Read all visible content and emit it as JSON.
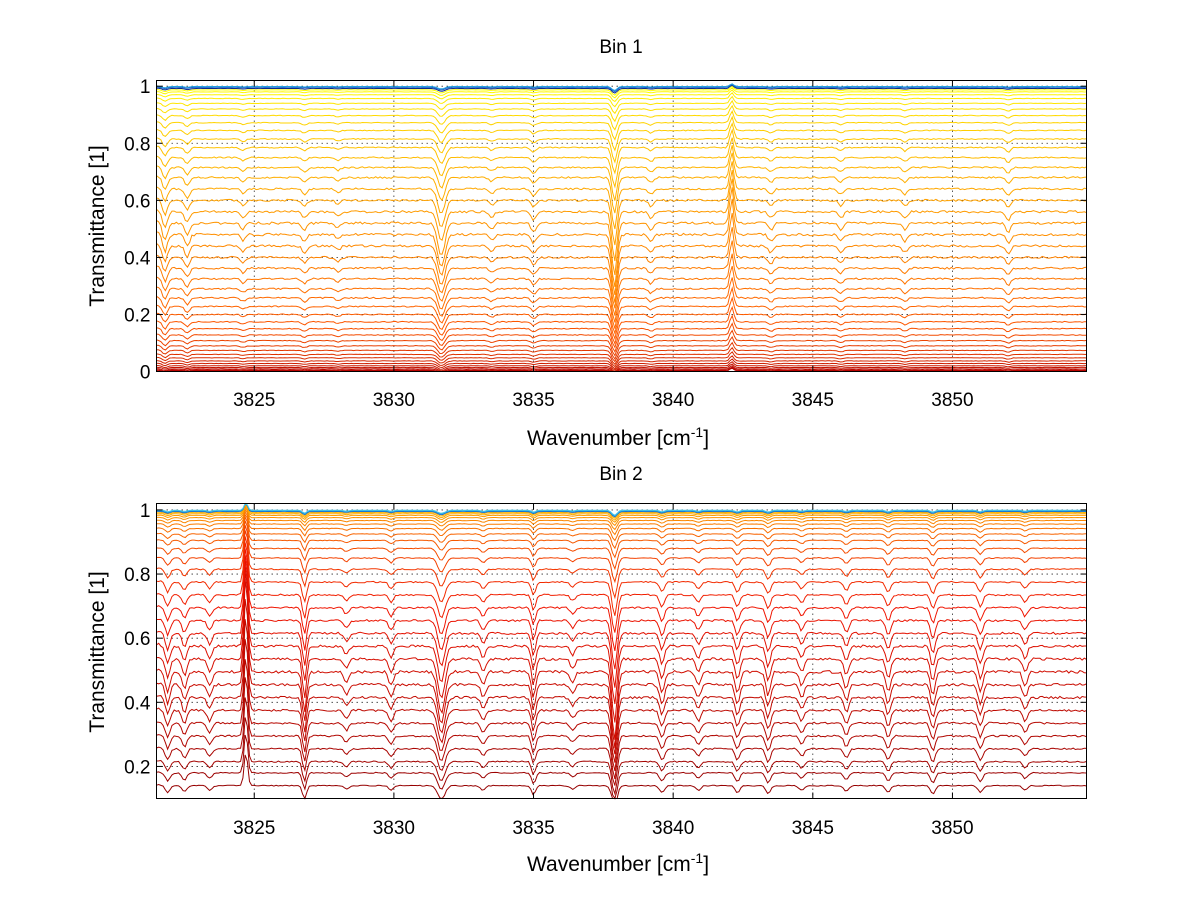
{
  "chart_data": [
    {
      "type": "line",
      "title": "Bin 1",
      "xlabel_base": "Wavenumber [cm",
      "xlabel_sup": "-1",
      "xlabel_close": "]",
      "ylabel": "Transmittance [1]",
      "xlim": [
        3821.5,
        3854.8
      ],
      "ylim": [
        0,
        1.02
      ],
      "xticks": [
        3825,
        3830,
        3835,
        3840,
        3845,
        3850
      ],
      "yticks": [
        0,
        0.2,
        0.4,
        0.6,
        0.8,
        1
      ],
      "ytick_labels": [
        "0",
        "0.2",
        "0.4",
        "0.6",
        "0.8",
        "1"
      ],
      "grid": true,
      "colormap": "autumn",
      "top_series_colors": [
        "#0a2a8c",
        "#1560c8",
        "#20a0e0"
      ],
      "series_levels": [
        0.002,
        0.005,
        0.009,
        0.014,
        0.02,
        0.028,
        0.037,
        0.048,
        0.06,
        0.074,
        0.09,
        0.108,
        0.128,
        0.15,
        0.174,
        0.2,
        0.228,
        0.258,
        0.29,
        0.325,
        0.362,
        0.4,
        0.44,
        0.48,
        0.52,
        0.56,
        0.6,
        0.64,
        0.68,
        0.715,
        0.75,
        0.785,
        0.815,
        0.845,
        0.872,
        0.897,
        0.92,
        0.94,
        0.957,
        0.97,
        0.98,
        0.987,
        0.992,
        0.996,
        0.999
      ],
      "absorption_features": [
        {
          "x": 3821.8,
          "depth": 0.03,
          "width": 0.12
        },
        {
          "x": 3822.6,
          "depth": 0.02,
          "width": 0.12
        },
        {
          "x": 3824.6,
          "depth": 0.01,
          "width": 0.12
        },
        {
          "x": 3826.8,
          "depth": 0.012,
          "width": 0.12
        },
        {
          "x": 3828.0,
          "depth": 0.008,
          "width": 0.12
        },
        {
          "x": 3831.7,
          "depth": 0.055,
          "width": 0.18
        },
        {
          "x": 3833.5,
          "depth": 0.01,
          "width": 0.12
        },
        {
          "x": 3835.0,
          "depth": 0.015,
          "width": 0.12
        },
        {
          "x": 3837.9,
          "depth": 0.09,
          "width": 0.13
        },
        {
          "x": 3839.2,
          "depth": 0.012,
          "width": 0.12
        },
        {
          "x": 3842.1,
          "depth": -0.06,
          "width": 0.1
        },
        {
          "x": 3843.5,
          "depth": 0.012,
          "width": 0.12
        },
        {
          "x": 3846.0,
          "depth": 0.012,
          "width": 0.12
        },
        {
          "x": 3848.3,
          "depth": 0.012,
          "width": 0.12
        },
        {
          "x": 3852.0,
          "depth": 0.015,
          "width": 0.12
        }
      ]
    },
    {
      "type": "line",
      "title": "Bin 2",
      "xlabel_base": "Wavenumber [cm",
      "xlabel_sup": "-1",
      "xlabel_close": "]",
      "ylabel": "Transmittance [1]",
      "xlim": [
        3821.5,
        3854.8
      ],
      "ylim": [
        0.1,
        1.02
      ],
      "xticks": [
        3825,
        3830,
        3835,
        3840,
        3845,
        3850
      ],
      "yticks": [
        0.2,
        0.4,
        0.6,
        0.8,
        1
      ],
      "ytick_labels": [
        "0.2",
        "0.4",
        "0.6",
        "0.8",
        "1"
      ],
      "grid": true,
      "colormap": "autumn",
      "top_series_colors": [
        "#1560c8",
        "#20a0e0",
        "#4ac8e8"
      ],
      "series_levels": [
        0.14,
        0.18,
        0.215,
        0.255,
        0.295,
        0.335,
        0.375,
        0.415,
        0.455,
        0.495,
        0.535,
        0.575,
        0.615,
        0.655,
        0.695,
        0.735,
        0.775,
        0.815,
        0.85,
        0.88,
        0.905,
        0.925,
        0.942,
        0.956,
        0.967,
        0.976,
        0.983,
        0.988,
        0.992,
        0.995,
        0.997,
        0.999
      ],
      "absorption_features": [
        {
          "x": 3821.9,
          "depth": 0.03,
          "width": 0.12
        },
        {
          "x": 3822.5,
          "depth": 0.025,
          "width": 0.12
        },
        {
          "x": 3823.4,
          "depth": 0.02,
          "width": 0.12
        },
        {
          "x": 3824.7,
          "depth": -0.15,
          "width": 0.09
        },
        {
          "x": 3826.8,
          "depth": 0.06,
          "width": 0.1
        },
        {
          "x": 3828.3,
          "depth": 0.015,
          "width": 0.12
        },
        {
          "x": 3829.9,
          "depth": 0.02,
          "width": 0.12
        },
        {
          "x": 3831.7,
          "depth": 0.06,
          "width": 0.18
        },
        {
          "x": 3833.2,
          "depth": 0.02,
          "width": 0.12
        },
        {
          "x": 3835.0,
          "depth": 0.04,
          "width": 0.1
        },
        {
          "x": 3836.4,
          "depth": 0.015,
          "width": 0.12
        },
        {
          "x": 3837.9,
          "depth": 0.1,
          "width": 0.13
        },
        {
          "x": 3839.6,
          "depth": 0.03,
          "width": 0.12
        },
        {
          "x": 3840.9,
          "depth": 0.02,
          "width": 0.12
        },
        {
          "x": 3842.3,
          "depth": 0.03,
          "width": 0.12
        },
        {
          "x": 3843.4,
          "depth": 0.035,
          "width": 0.12
        },
        {
          "x": 3844.6,
          "depth": 0.02,
          "width": 0.12
        },
        {
          "x": 3846.2,
          "depth": 0.025,
          "width": 0.12
        },
        {
          "x": 3847.7,
          "depth": 0.03,
          "width": 0.12
        },
        {
          "x": 3849.3,
          "depth": 0.035,
          "width": 0.12
        },
        {
          "x": 3851.0,
          "depth": 0.03,
          "width": 0.12
        },
        {
          "x": 3852.6,
          "depth": 0.02,
          "width": 0.12
        }
      ]
    }
  ]
}
